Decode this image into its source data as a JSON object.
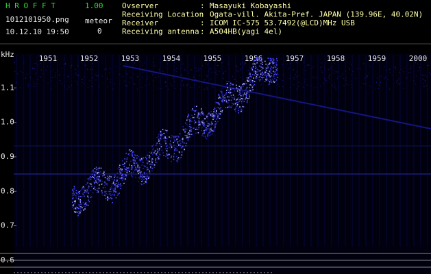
{
  "header": {
    "app": "H R O F F T",
    "version": "1.00",
    "filename": "1012101950.png",
    "datetime": "10.12.10 19:50",
    "meteor_label": "meteor",
    "meteor_count": "0"
  },
  "info": {
    "separator": ":",
    "rows": [
      [
        "Ovserver",
        "Masayuki Kobayashi"
      ],
      [
        "Receiving Location",
        "Ogata-vill. Akita-Pref. JAPAN (139.96E, 40.02N)"
      ],
      [
        "Receiver",
        "ICOM IC-575 53.7492(@LCD)MHz USB"
      ],
      [
        "Receiving antenna",
        "A504HB(yagi 4el)"
      ]
    ]
  },
  "spectrogram": {
    "y_unit": "kHz",
    "xticks": [
      "1951",
      "1952",
      "1953",
      "1954",
      "1955",
      "1956",
      "1957",
      "1958",
      "1959",
      "2000"
    ],
    "ylim": [
      0.56,
      1.2
    ],
    "yticks": [
      {
        "value": 0.6,
        "label": "0.6"
      },
      0.7,
      0.8,
      0.9,
      {
        "value": 1,
        "label": "1.0"
      },
      1.1
    ]
  }
}
